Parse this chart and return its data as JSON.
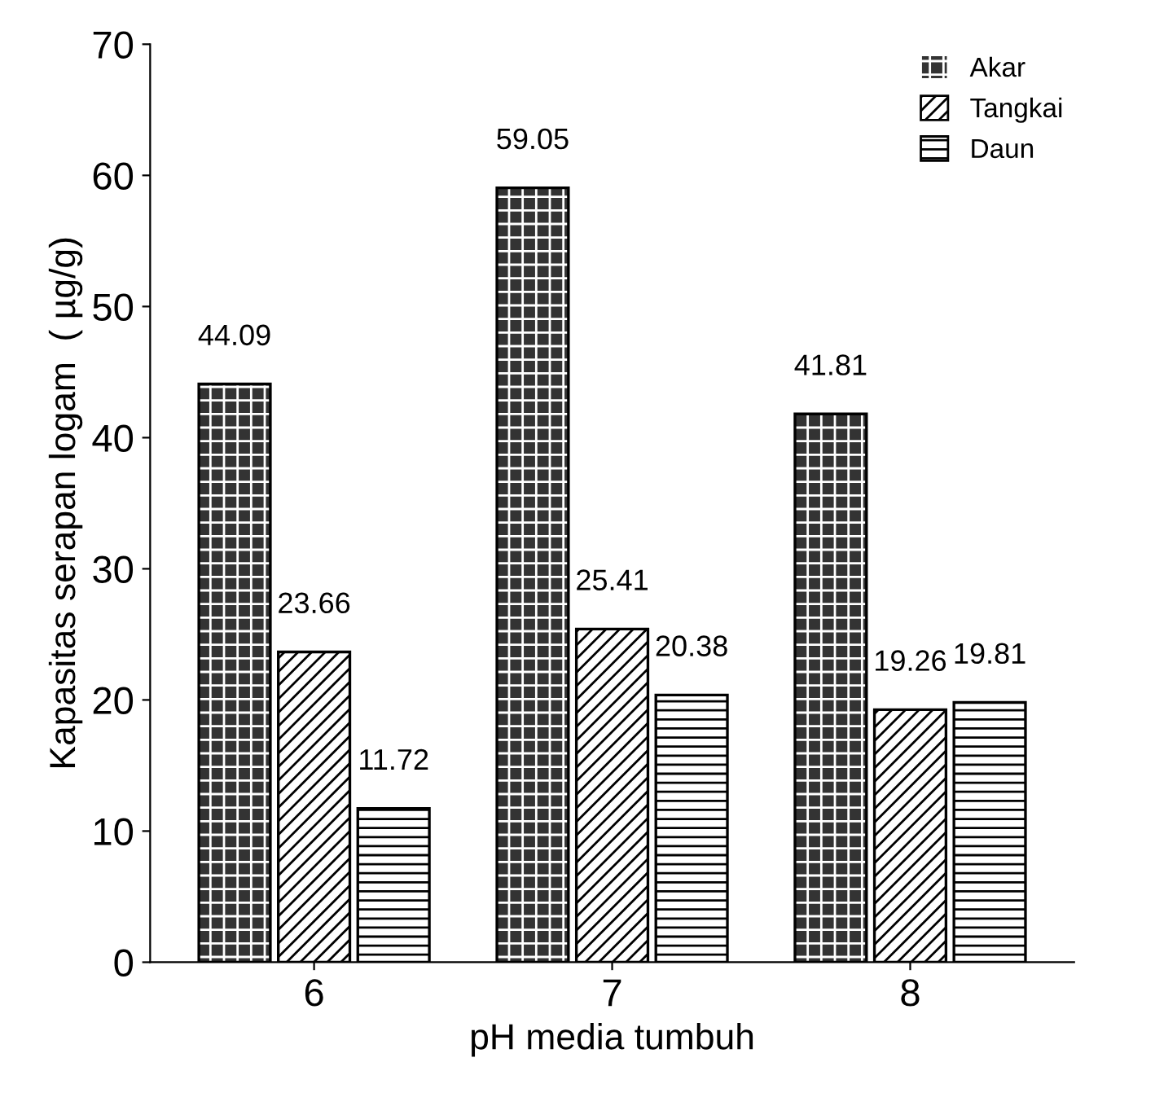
{
  "chart_data": {
    "type": "bar",
    "xlabel": "pH media tumbuh",
    "ylabel": "Kapasitas serapan logam  ( µg/g)",
    "categories": [
      "6",
      "7",
      "8"
    ],
    "series": [
      {
        "name": "Akar",
        "color": "#333333",
        "values": [
          44.09,
          59.05,
          41.81
        ]
      },
      {
        "name": "Tangkai",
        "color": "#ffffff",
        "values": [
          23.66,
          25.41,
          19.26
        ]
      },
      {
        "name": "Daun",
        "color": "#ffffff",
        "values": [
          11.72,
          20.38,
          19.81
        ]
      }
    ],
    "ylim": [
      0,
      70
    ],
    "yticks": [
      0,
      10,
      20,
      30,
      40,
      50,
      60,
      70
    ],
    "grid": false,
    "legend": "top right",
    "data_labels": true
  }
}
